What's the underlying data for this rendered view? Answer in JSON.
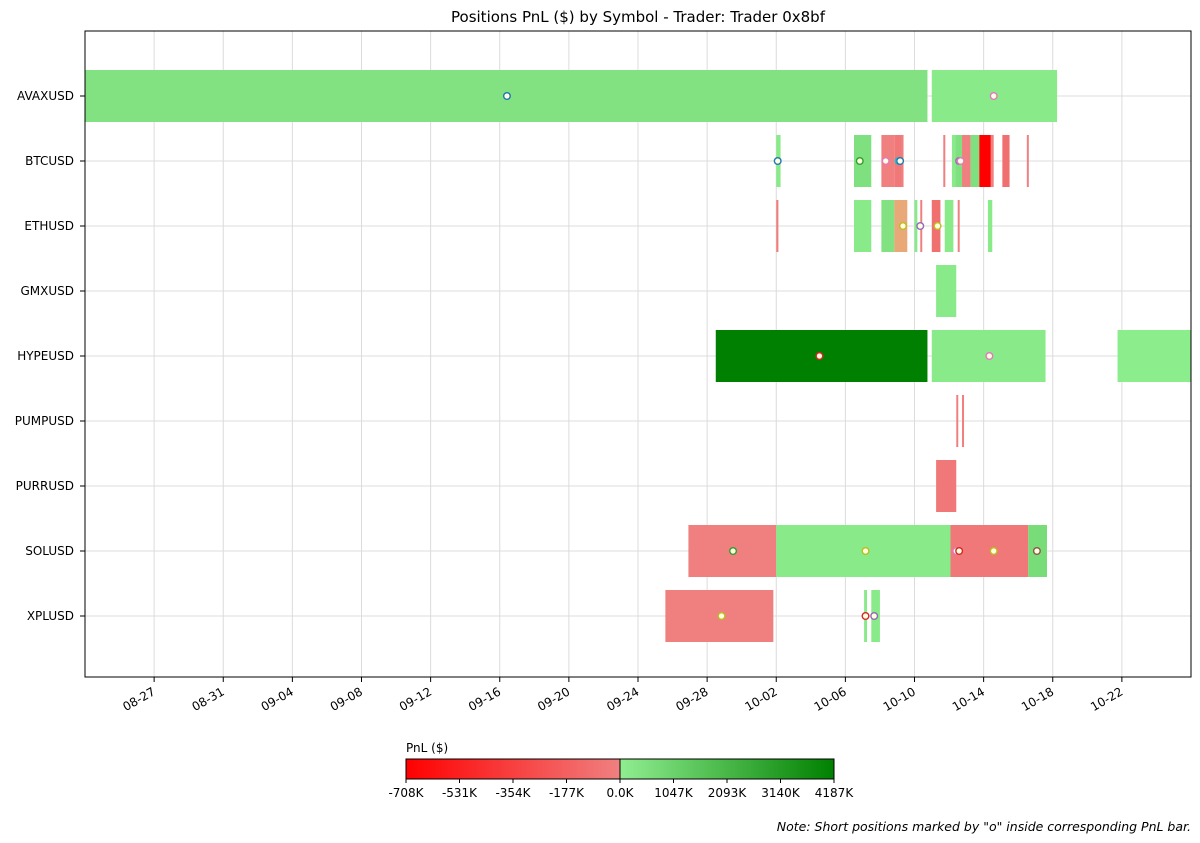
{
  "chart_data": {
    "type": "timeline",
    "title": "Positions PnL ($) by Symbol - Trader: Trader 0x8bf",
    "xlim": [
      "2025-08-23",
      "2025-10-26"
    ],
    "x_ticks": [
      "08-27",
      "08-31",
      "09-04",
      "09-08",
      "09-12",
      "09-16",
      "09-20",
      "09-24",
      "09-28",
      "10-02",
      "10-06",
      "10-10",
      "10-14",
      "10-18",
      "10-22"
    ],
    "x_tick_dates": [
      "2025-08-27",
      "2025-08-31",
      "2025-09-04",
      "2025-09-08",
      "2025-09-12",
      "2025-09-16",
      "2025-09-20",
      "2025-09-24",
      "2025-09-28",
      "2025-10-02",
      "2025-10-06",
      "2025-10-10",
      "2025-10-14",
      "2025-10-18",
      "2025-10-22"
    ],
    "categories": [
      "AVAXUSD",
      "BTCUSD",
      "ETHUSD",
      "GMXUSD",
      "HYPEUSD",
      "PUMPUSD",
      "PURRUSD",
      "SOLUSD",
      "XPLUSD"
    ],
    "grid": true,
    "colorbar": {
      "label": "PnL ($)",
      "ticks": [
        "-708K",
        "-531K",
        "-354K",
        "-177K",
        "0.0K",
        "1047K",
        "2093K",
        "3140K",
        "4187K"
      ],
      "neg_colors": [
        "#ff0000",
        "#f08080"
      ],
      "pos_colors": [
        "#90ee90",
        "#008000"
      ]
    },
    "note": "Note: Short positions marked by \"o\" inside corresponding PnL bar.",
    "positions": [
      {
        "symbol": "AVAXUSD",
        "start": "2025-08-23 00:00",
        "end": "2025-10-10 18:00",
        "color": "#82e282"
      },
      {
        "symbol": "AVAXUSD",
        "start": "2025-10-11 00:00",
        "end": "2025-10-18 06:00",
        "color": "#88ea88"
      },
      {
        "symbol": "BTCUSD",
        "start": "2025-10-02 00:00",
        "end": "2025-10-02 06:00",
        "color": "#88ea88"
      },
      {
        "symbol": "BTCUSD",
        "start": "2025-10-06 12:00",
        "end": "2025-10-07 12:00",
        "color": "#7ee07e"
      },
      {
        "symbol": "BTCUSD",
        "start": "2025-10-08 02:00",
        "end": "2025-10-08 20:00",
        "color": "#f08080"
      },
      {
        "symbol": "BTCUSD",
        "start": "2025-10-08 20:00",
        "end": "2025-10-09 06:00",
        "color": "#f07878"
      },
      {
        "symbol": "BTCUSD",
        "start": "2025-10-09 06:00",
        "end": "2025-10-09 08:00",
        "color": "#f08080"
      },
      {
        "symbol": "BTCUSD",
        "start": "2025-10-11 16:00",
        "end": "2025-10-11 18:00",
        "color": "#f08080"
      },
      {
        "symbol": "BTCUSD",
        "start": "2025-10-12 04:00",
        "end": "2025-10-12 09:00",
        "color": "#88ea88"
      },
      {
        "symbol": "BTCUSD",
        "start": "2025-10-12 09:00",
        "end": "2025-10-12 18:00",
        "color": "#7ee07e"
      },
      {
        "symbol": "BTCUSD",
        "start": "2025-10-12 18:00",
        "end": "2025-10-13 06:00",
        "color": "#f08080"
      },
      {
        "symbol": "BTCUSD",
        "start": "2025-10-13 06:00",
        "end": "2025-10-13 18:00",
        "color": "#7ee07e"
      },
      {
        "symbol": "BTCUSD",
        "start": "2025-10-13 18:00",
        "end": "2025-10-14 10:00",
        "color": "#ff0000"
      },
      {
        "symbol": "BTCUSD",
        "start": "2025-10-14 10:00",
        "end": "2025-10-14 14:00",
        "color": "#f08080"
      },
      {
        "symbol": "BTCUSD",
        "start": "2025-10-15 02:00",
        "end": "2025-10-15 12:00",
        "color": "#f07070"
      },
      {
        "symbol": "BTCUSD",
        "start": "2025-10-16 12:00",
        "end": "2025-10-16 14:00",
        "color": "#f08080"
      },
      {
        "symbol": "ETHUSD",
        "start": "2025-10-02 00:00",
        "end": "2025-10-02 03:00",
        "color": "#f08080"
      },
      {
        "symbol": "ETHUSD",
        "start": "2025-10-06 12:00",
        "end": "2025-10-07 12:00",
        "color": "#88ea88"
      },
      {
        "symbol": "ETHUSD",
        "start": "2025-10-08 02:00",
        "end": "2025-10-08 20:00",
        "color": "#82e282"
      },
      {
        "symbol": "ETHUSD",
        "start": "2025-10-08 20:00",
        "end": "2025-10-09 14:00",
        "color": "#e8a878"
      },
      {
        "symbol": "ETHUSD",
        "start": "2025-10-10 00:00",
        "end": "2025-10-10 04:00",
        "color": "#88ea88"
      },
      {
        "symbol": "ETHUSD",
        "start": "2025-10-10 08:00",
        "end": "2025-10-10 10:00",
        "color": "#f08080"
      },
      {
        "symbol": "ETHUSD",
        "start": "2025-10-11 00:00",
        "end": "2025-10-11 12:00",
        "color": "#f07070"
      },
      {
        "symbol": "ETHUSD",
        "start": "2025-10-11 18:00",
        "end": "2025-10-12 06:00",
        "color": "#88ea88"
      },
      {
        "symbol": "ETHUSD",
        "start": "2025-10-12 12:00",
        "end": "2025-10-12 14:00",
        "color": "#f08080"
      },
      {
        "symbol": "ETHUSD",
        "start": "2025-10-14 06:00",
        "end": "2025-10-14 12:00",
        "color": "#88ea88"
      },
      {
        "symbol": "GMXUSD",
        "start": "2025-10-11 06:00",
        "end": "2025-10-12 10:00",
        "color": "#88ea88"
      },
      {
        "symbol": "HYPEUSD",
        "start": "2025-09-28 12:00",
        "end": "2025-10-10 18:00",
        "color": "#008000"
      },
      {
        "symbol": "HYPEUSD",
        "start": "2025-10-11 00:00",
        "end": "2025-10-17 14:00",
        "color": "#88ea88"
      },
      {
        "symbol": "HYPEUSD",
        "start": "2025-10-21 18:00",
        "end": "2025-10-26 00:00",
        "color": "#8ced8c"
      },
      {
        "symbol": "PUMPUSD",
        "start": "2025-10-12 10:00",
        "end": "2025-10-12 12:00",
        "color": "#f08080"
      },
      {
        "symbol": "PUMPUSD",
        "start": "2025-10-12 18:00",
        "end": "2025-10-12 20:00",
        "color": "#f08080"
      },
      {
        "symbol": "PURRUSD",
        "start": "2025-10-11 06:00",
        "end": "2025-10-12 10:00",
        "color": "#f07878"
      },
      {
        "symbol": "SOLUSD",
        "start": "2025-09-26 22:00",
        "end": "2025-10-02 00:00",
        "color": "#f08080"
      },
      {
        "symbol": "SOLUSD",
        "start": "2025-10-02 00:00",
        "end": "2025-10-12 02:00",
        "color": "#88ea88"
      },
      {
        "symbol": "SOLUSD",
        "start": "2025-10-12 02:00",
        "end": "2025-10-16 14:00",
        "color": "#f07878"
      },
      {
        "symbol": "SOLUSD",
        "start": "2025-10-16 14:00",
        "end": "2025-10-17 16:00",
        "color": "#78dc78"
      },
      {
        "symbol": "XPLUSD",
        "start": "2025-09-25 14:00",
        "end": "2025-10-01 20:00",
        "color": "#f08080"
      },
      {
        "symbol": "XPLUSD",
        "start": "2025-10-07 02:00",
        "end": "2025-10-07 06:00",
        "color": "#88ea88"
      },
      {
        "symbol": "XPLUSD",
        "start": "2025-10-07 12:00",
        "end": "2025-10-08 00:00",
        "color": "#88ea88"
      }
    ],
    "short_markers": [
      {
        "symbol": "AVAXUSD",
        "time": "2025-09-16 10:00",
        "edge": "#1f77b4"
      },
      {
        "symbol": "AVAXUSD",
        "time": "2025-10-14 14:00",
        "edge": "#e377c2"
      },
      {
        "symbol": "BTCUSD",
        "time": "2025-10-02 02:00",
        "edge": "#1f77b4"
      },
      {
        "symbol": "BTCUSD",
        "time": "2025-10-06 20:00",
        "edge": "#2ca02c"
      },
      {
        "symbol": "BTCUSD",
        "time": "2025-10-08 08:00",
        "edge": "#e377c2"
      },
      {
        "symbol": "BTCUSD",
        "time": "2025-10-09 02:00",
        "edge": "#17becf"
      },
      {
        "symbol": "BTCUSD",
        "time": "2025-10-09 04:00",
        "edge": "#1f77b4"
      },
      {
        "symbol": "BTCUSD",
        "time": "2025-10-12 14:00",
        "edge": "#9467bd"
      },
      {
        "symbol": "BTCUSD",
        "time": "2025-10-12 16:00",
        "edge": "#e377c2"
      },
      {
        "symbol": "ETHUSD",
        "time": "2025-10-09 08:00",
        "edge": "#bcbd22"
      },
      {
        "symbol": "ETHUSD",
        "time": "2025-10-10 08:00",
        "edge": "#9467bd"
      },
      {
        "symbol": "ETHUSD",
        "time": "2025-10-11 08:00",
        "edge": "#bcbd22"
      },
      {
        "symbol": "HYPEUSD",
        "time": "2025-10-04 12:00",
        "edge": "#d62728"
      },
      {
        "symbol": "HYPEUSD",
        "time": "2025-10-14 08:00",
        "edge": "#e377c2"
      },
      {
        "symbol": "SOLUSD",
        "time": "2025-09-29 12:00",
        "edge": "#2ca02c"
      },
      {
        "symbol": "SOLUSD",
        "time": "2025-10-07 04:00",
        "edge": "#bcbd22"
      },
      {
        "symbol": "SOLUSD",
        "time": "2025-10-12 10:00",
        "edge": "#e377c2"
      },
      {
        "symbol": "SOLUSD",
        "time": "2025-10-12 14:00",
        "edge": "#d62728"
      },
      {
        "symbol": "SOLUSD",
        "time": "2025-10-14 14:00",
        "edge": "#bcbd22"
      },
      {
        "symbol": "SOLUSD",
        "time": "2025-10-17 02:00",
        "edge": "#8c564b"
      },
      {
        "symbol": "XPLUSD",
        "time": "2025-09-28 20:00",
        "edge": "#bcbd22"
      },
      {
        "symbol": "XPLUSD",
        "time": "2025-10-07 04:00",
        "edge": "#d62728"
      },
      {
        "symbol": "XPLUSD",
        "time": "2025-10-07 16:00",
        "edge": "#9467bd"
      }
    ]
  }
}
